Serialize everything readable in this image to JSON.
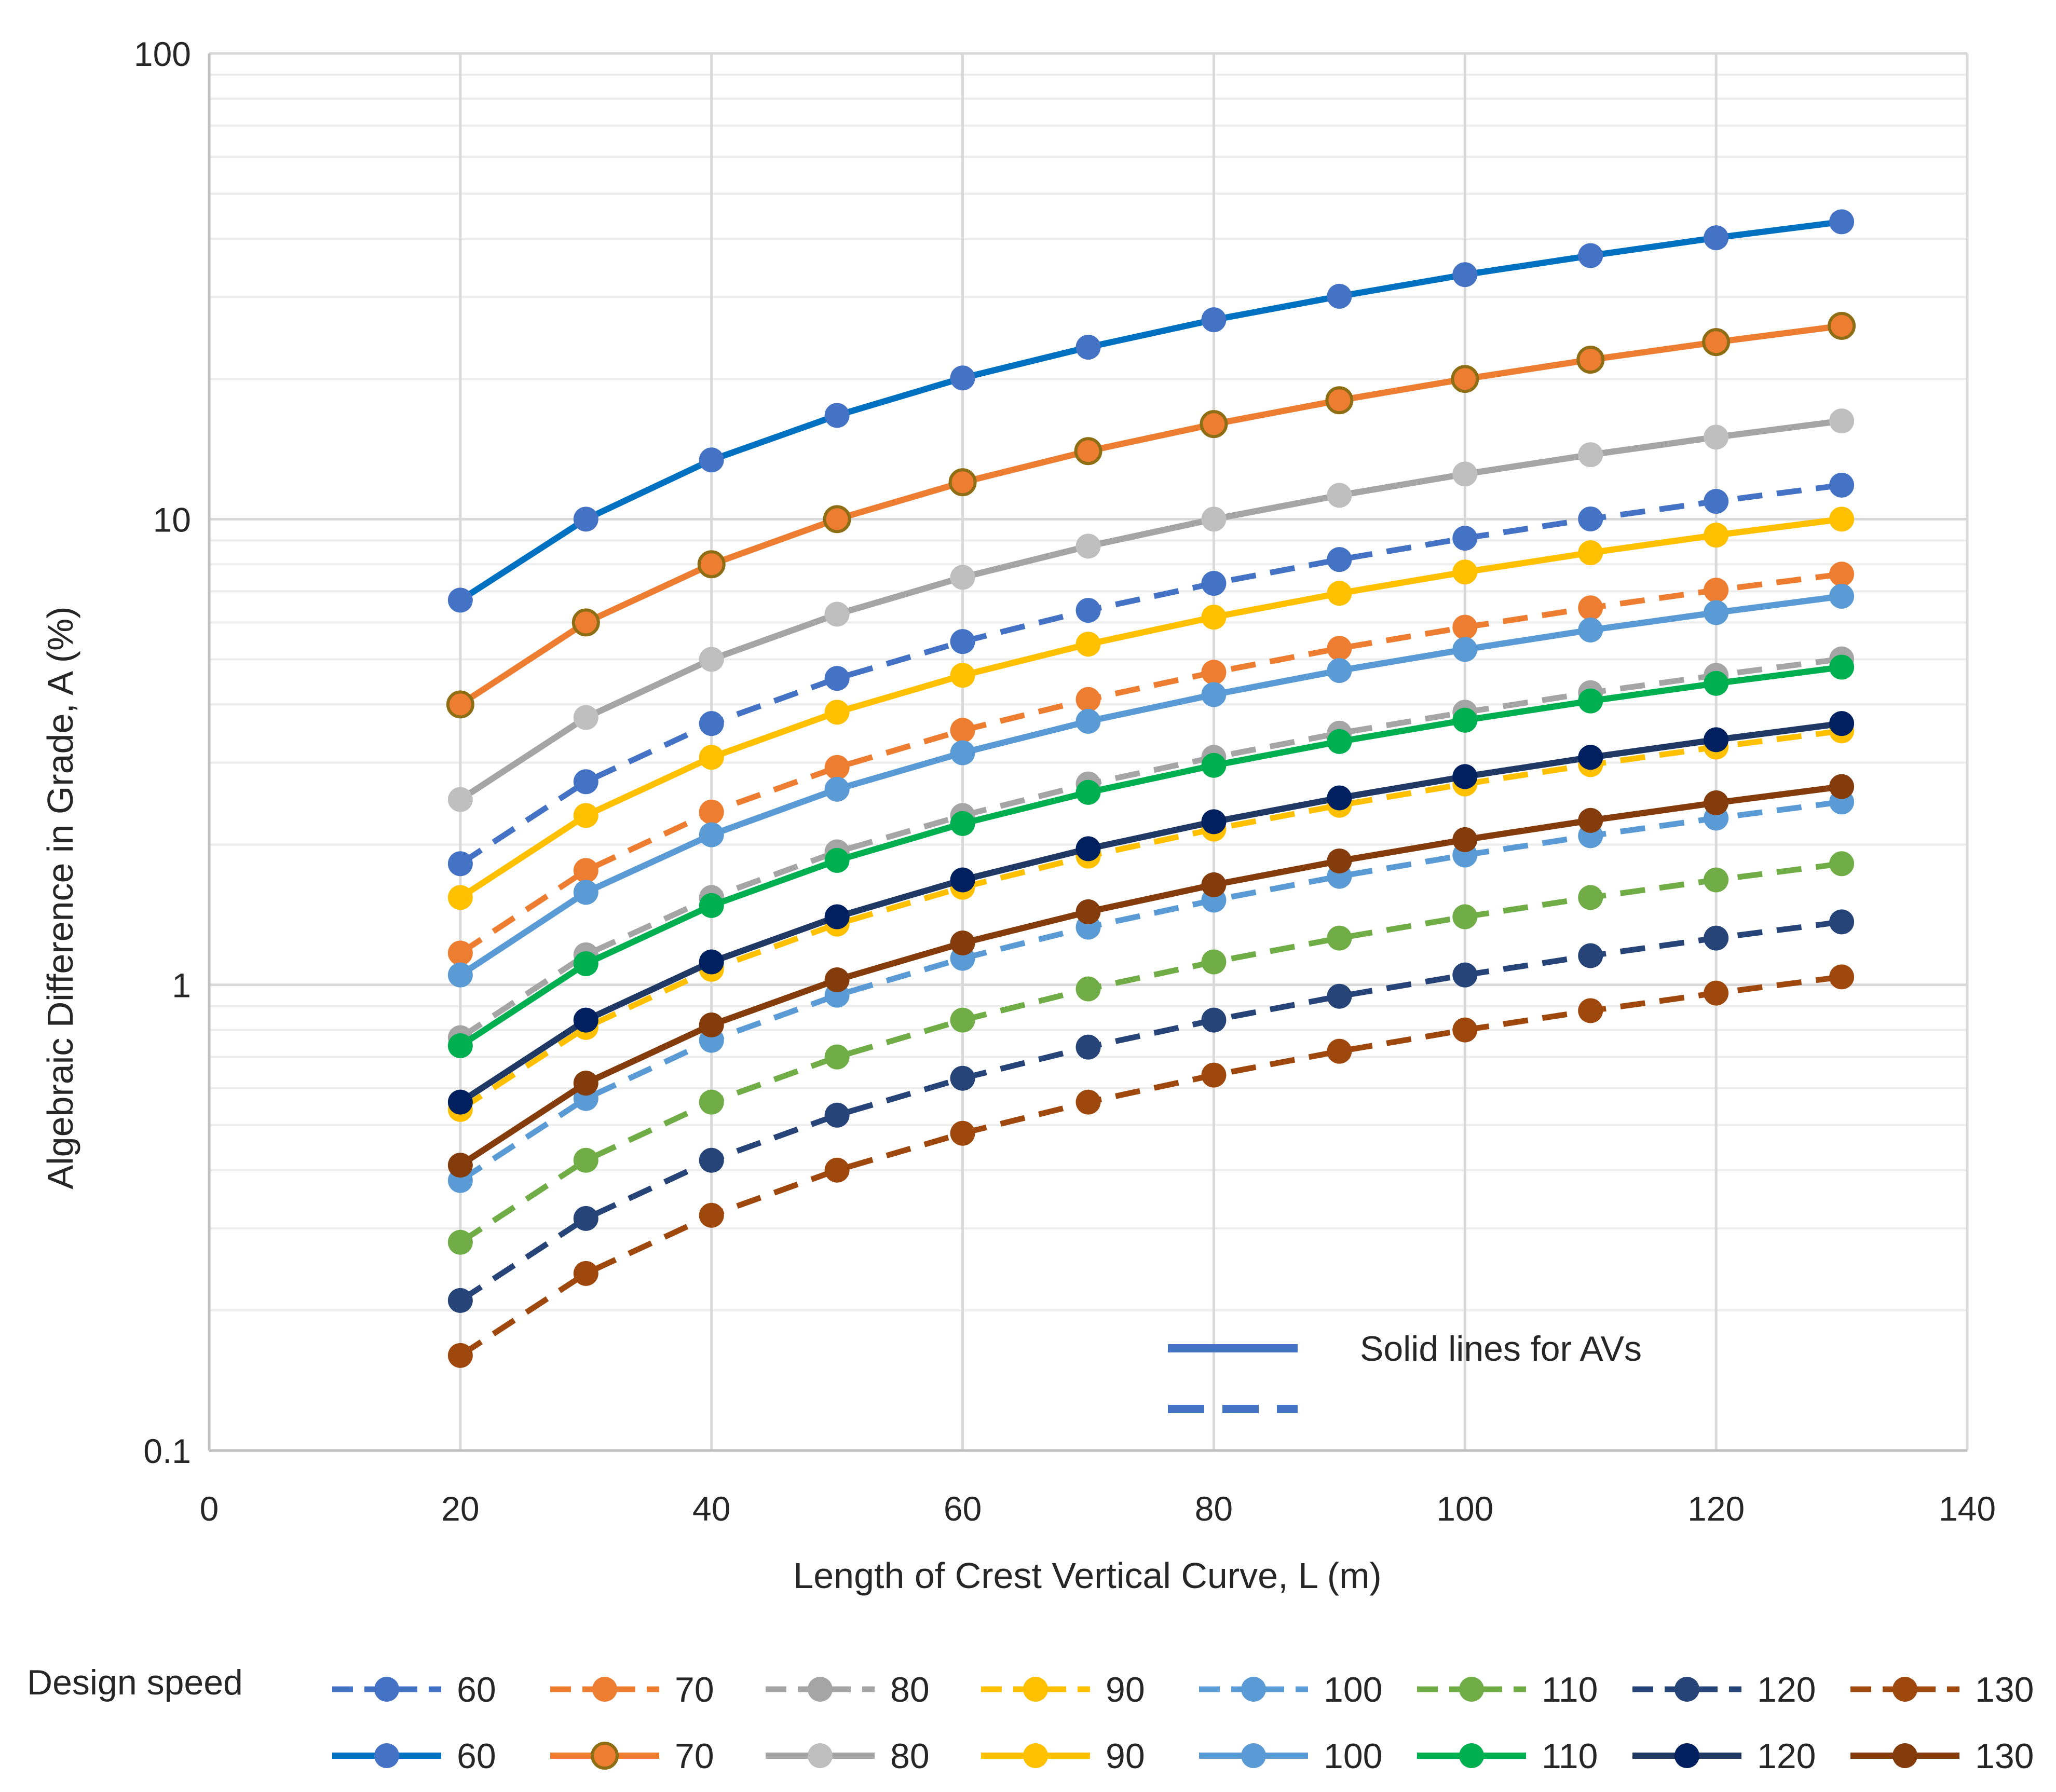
{
  "chart_data": {
    "type": "line",
    "x": [
      20,
      30,
      40,
      50,
      60,
      70,
      80,
      90,
      100,
      110,
      120,
      130
    ],
    "xlabel": "Length of Crest Vertical Curve, L (m)",
    "ylabel": "Algebraic Difference in Grade, A (%)",
    "xlim": [
      0,
      140
    ],
    "ylim": [
      0.1,
      100
    ],
    "y_scale": "log",
    "x_ticks": [
      "0",
      "20",
      "40",
      "60",
      "80",
      "100",
      "120",
      "140"
    ],
    "y_ticks": [
      "0.1",
      "1",
      "10",
      "100"
    ],
    "grid": true,
    "legend_title": "Design speed",
    "legend_position": "bottom",
    "annotation": "Solid lines for AVs",
    "series": [
      {
        "name": "60",
        "style": "dashed",
        "color": "#4472C4",
        "values": [
          1.82,
          2.73,
          3.64,
          4.55,
          5.46,
          6.37,
          7.28,
          8.19,
          9.1,
          10.01,
          10.92,
          11.83
        ]
      },
      {
        "name": "70",
        "style": "dashed",
        "color": "#ED7D31",
        "values": [
          1.17,
          1.76,
          2.35,
          2.93,
          3.52,
          4.1,
          4.69,
          5.28,
          5.86,
          6.45,
          7.04,
          7.62
        ]
      },
      {
        "name": "80",
        "style": "dashed",
        "color": "#A5A5A5",
        "values": [
          0.77,
          1.16,
          1.54,
          1.93,
          2.31,
          2.7,
          3.08,
          3.47,
          3.85,
          4.24,
          4.62,
          5.01
        ]
      },
      {
        "name": "90",
        "style": "dashed",
        "color": "#FFC000",
        "values": [
          0.54,
          0.81,
          1.08,
          1.35,
          1.62,
          1.89,
          2.16,
          2.43,
          2.7,
          2.97,
          3.24,
          3.51
        ]
      },
      {
        "name": "100",
        "style": "dashed",
        "color": "#5B9BD5",
        "values": [
          0.38,
          0.57,
          0.76,
          0.95,
          1.14,
          1.33,
          1.52,
          1.71,
          1.9,
          2.09,
          2.28,
          2.47
        ]
      },
      {
        "name": "110",
        "style": "dashed",
        "color": "#70AD47",
        "values": [
          0.28,
          0.42,
          0.56,
          0.7,
          0.84,
          0.98,
          1.12,
          1.26,
          1.4,
          1.54,
          1.68,
          1.82
        ]
      },
      {
        "name": "120",
        "style": "dashed",
        "color": "#264478",
        "values": [
          0.21,
          0.315,
          0.42,
          0.525,
          0.63,
          0.735,
          0.84,
          0.945,
          1.05,
          1.155,
          1.26,
          1.365
        ]
      },
      {
        "name": "130",
        "style": "dashed",
        "color": "#9E480E",
        "values": [
          0.16,
          0.24,
          0.32,
          0.4,
          0.48,
          0.56,
          0.64,
          0.72,
          0.8,
          0.88,
          0.96,
          1.04
        ]
      },
      {
        "name": "60",
        "style": "solid",
        "color": "#0070C0",
        "marker_color": "#4472C4",
        "values": [
          6.7,
          10.0,
          13.4,
          16.7,
          20.1,
          23.4,
          26.8,
          30.1,
          33.5,
          36.8,
          40.2,
          43.5
        ]
      },
      {
        "name": "70",
        "style": "solid",
        "color": "#ED7D31",
        "marker_color": "#ED7D31",
        "marker_edge": "#8E6E14",
        "values": [
          4.0,
          6.0,
          8.0,
          10.0,
          12.0,
          14.0,
          16.0,
          18.0,
          20.0,
          22.0,
          24.0,
          26.0
        ]
      },
      {
        "name": "80",
        "style": "solid",
        "color": "#A5A5A5",
        "marker_color": "#BFBFBF",
        "values": [
          2.5,
          3.75,
          5.0,
          6.25,
          7.5,
          8.75,
          10.0,
          11.25,
          12.5,
          13.75,
          15.0,
          16.25
        ]
      },
      {
        "name": "90",
        "style": "solid",
        "color": "#FFC000",
        "marker_color": "#FFC000",
        "values": [
          1.54,
          2.31,
          3.08,
          3.85,
          4.62,
          5.39,
          6.16,
          6.93,
          7.7,
          8.47,
          9.24,
          10.0
        ]
      },
      {
        "name": "100",
        "style": "solid",
        "color": "#5B9BD5",
        "marker_color": "#5B9BD5",
        "values": [
          1.05,
          1.58,
          2.1,
          2.63,
          3.15,
          3.68,
          4.2,
          4.73,
          5.25,
          5.78,
          6.3,
          6.83
        ]
      },
      {
        "name": "110",
        "style": "solid",
        "color": "#00B050",
        "marker_color": "#00B050",
        "values": [
          0.74,
          1.11,
          1.48,
          1.85,
          2.22,
          2.59,
          2.96,
          3.33,
          3.7,
          4.07,
          4.44,
          4.81
        ]
      },
      {
        "name": "120",
        "style": "solid",
        "color": "#1F3864",
        "marker_color": "#002060",
        "values": [
          0.56,
          0.84,
          1.12,
          1.4,
          1.68,
          1.96,
          2.24,
          2.52,
          2.8,
          3.08,
          3.36,
          3.64
        ]
      },
      {
        "name": "130",
        "style": "solid",
        "color": "#843C0C",
        "marker_color": "#843C0C",
        "values": [
          0.41,
          0.615,
          0.82,
          1.025,
          1.23,
          1.435,
          1.64,
          1.845,
          2.05,
          2.255,
          2.46,
          2.665
        ]
      }
    ]
  }
}
